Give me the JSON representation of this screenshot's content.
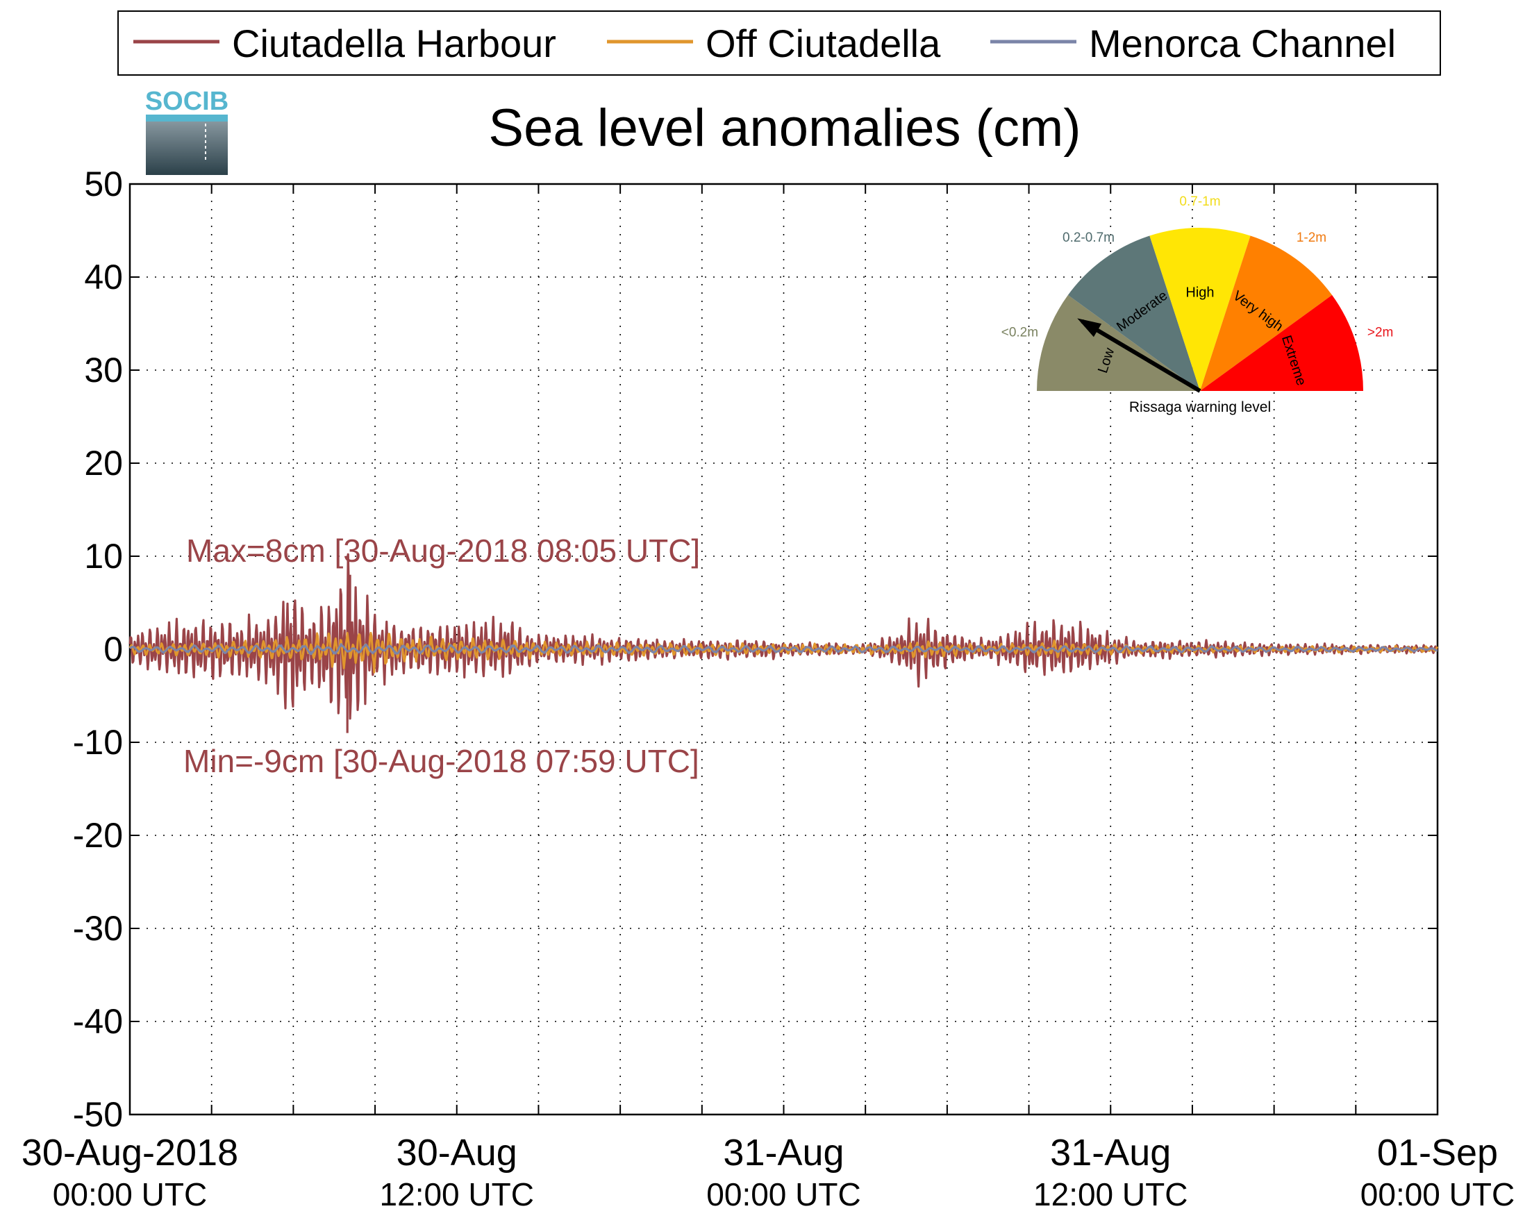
{
  "logo": {
    "text": "SOCIB"
  },
  "chart_data": {
    "type": "line",
    "title": "Sea level anomalies (cm)",
    "xlabel": "",
    "ylabel": "",
    "ylim": [
      -50,
      50
    ],
    "y_ticks": [
      50,
      40,
      30,
      20,
      10,
      0,
      -10,
      -20,
      -30,
      -40,
      -50
    ],
    "x_range_hours": [
      0,
      48
    ],
    "x_tick_labels": [
      {
        "hour": 0,
        "line1": "30-Aug-2018",
        "line2": "00:00 UTC"
      },
      {
        "hour": 12,
        "line1": "30-Aug",
        "line2": "12:00 UTC"
      },
      {
        "hour": 24,
        "line1": "31-Aug",
        "line2": "00:00 UTC"
      },
      {
        "hour": 36,
        "line1": "31-Aug",
        "line2": "12:00 UTC"
      },
      {
        "hour": 48,
        "line1": "01-Sep",
        "line2": "00:00 UTC"
      }
    ],
    "minor_tick_hours": [
      3,
      6,
      9,
      15,
      18,
      21,
      27,
      30,
      33,
      39,
      42,
      45
    ],
    "grid": true,
    "legend": {
      "placement": "top",
      "entries": [
        "Ciutadella Harbour",
        "Off Ciutadella",
        "Menorca Channel"
      ]
    },
    "series": [
      {
        "name": "Ciutadella Harbour",
        "color": "#9a4448",
        "amplitude_envelope": [
          [
            0,
            1.5
          ],
          [
            1,
            2.5
          ],
          [
            2,
            3
          ],
          [
            3,
            3
          ],
          [
            4,
            3
          ],
          [
            5,
            3.5
          ],
          [
            5.5,
            5
          ],
          [
            6,
            6.5
          ],
          [
            6.5,
            4
          ],
          [
            7,
            5
          ],
          [
            7.5,
            6
          ],
          [
            8,
            8.5
          ],
          [
            8.5,
            6
          ],
          [
            9,
            3.5
          ],
          [
            10,
            2.8
          ],
          [
            11,
            2.5
          ],
          [
            12,
            2.8
          ],
          [
            13,
            3
          ],
          [
            14,
            3
          ],
          [
            14.5,
            2
          ],
          [
            15,
            1.5
          ],
          [
            17,
            1.4
          ],
          [
            19,
            1.2
          ],
          [
            20,
            1
          ],
          [
            22,
            1
          ],
          [
            23,
            1
          ],
          [
            24,
            0.8
          ],
          [
            26,
            0.6
          ],
          [
            27,
            0.5
          ],
          [
            28,
            1.5
          ],
          [
            29,
            3.5
          ],
          [
            30,
            2
          ],
          [
            31,
            1
          ],
          [
            32,
            1.5
          ],
          [
            33,
            2.5
          ],
          [
            34,
            3
          ],
          [
            35,
            2.5
          ],
          [
            36,
            1.5
          ],
          [
            37,
            0.8
          ],
          [
            38,
            1
          ],
          [
            40,
            0.8
          ],
          [
            42,
            0.6
          ],
          [
            44,
            0.5
          ],
          [
            46,
            0.4
          ],
          [
            48,
            0.4
          ]
        ],
        "annotations": {
          "max": {
            "value": 8,
            "label": "Max=8cm [30-Aug-2018 08:05 UTC]"
          },
          "min": {
            "value": -9,
            "label": "Min=-9cm [30-Aug-2018 07:59 UTC]"
          }
        }
      },
      {
        "name": "Off Ciutadella",
        "color": "#e0962d",
        "amplitude_envelope": [
          [
            0,
            0.5
          ],
          [
            4,
            0.8
          ],
          [
            6,
            1.2
          ],
          [
            8,
            1.8
          ],
          [
            9,
            2
          ],
          [
            10,
            1.2
          ],
          [
            13,
            1
          ],
          [
            16,
            0.7
          ],
          [
            20,
            0.6
          ],
          [
            24,
            0.5
          ],
          [
            28,
            0.5
          ],
          [
            29,
            0.9
          ],
          [
            31,
            0.5
          ],
          [
            34,
            0.8
          ],
          [
            36,
            0.5
          ],
          [
            40,
            0.3
          ],
          [
            48,
            0.3
          ]
        ]
      },
      {
        "name": "Menorca Channel",
        "color": "#7b84a8",
        "amplitude_envelope": [
          [
            0,
            0.3
          ],
          [
            6,
            0.4
          ],
          [
            8,
            0.5
          ],
          [
            12,
            0.4
          ],
          [
            24,
            0.3
          ],
          [
            36,
            0.3
          ],
          [
            48,
            0.2
          ]
        ]
      }
    ]
  },
  "gauge": {
    "caption": "Rissaga warning level",
    "current_level": "Low",
    "segments": [
      {
        "word": "Low",
        "range": "<0.2m",
        "color": "#8a8a68",
        "range_color": "#7a8260"
      },
      {
        "word": "Moderate",
        "range": "0.2-0.7m",
        "color": "#5d7778",
        "range_color": "#4e6a6c"
      },
      {
        "word": "High",
        "range": "0.7-1m",
        "color": "#ffe605",
        "range_color": "#f2dc1a"
      },
      {
        "word": "Very high",
        "range": "1-2m",
        "color": "#ff8000",
        "range_color": "#f07a10"
      },
      {
        "word": "Extreme",
        "range": ">2m",
        "color": "#ff0000",
        "range_color": "#e8141a"
      }
    ]
  }
}
